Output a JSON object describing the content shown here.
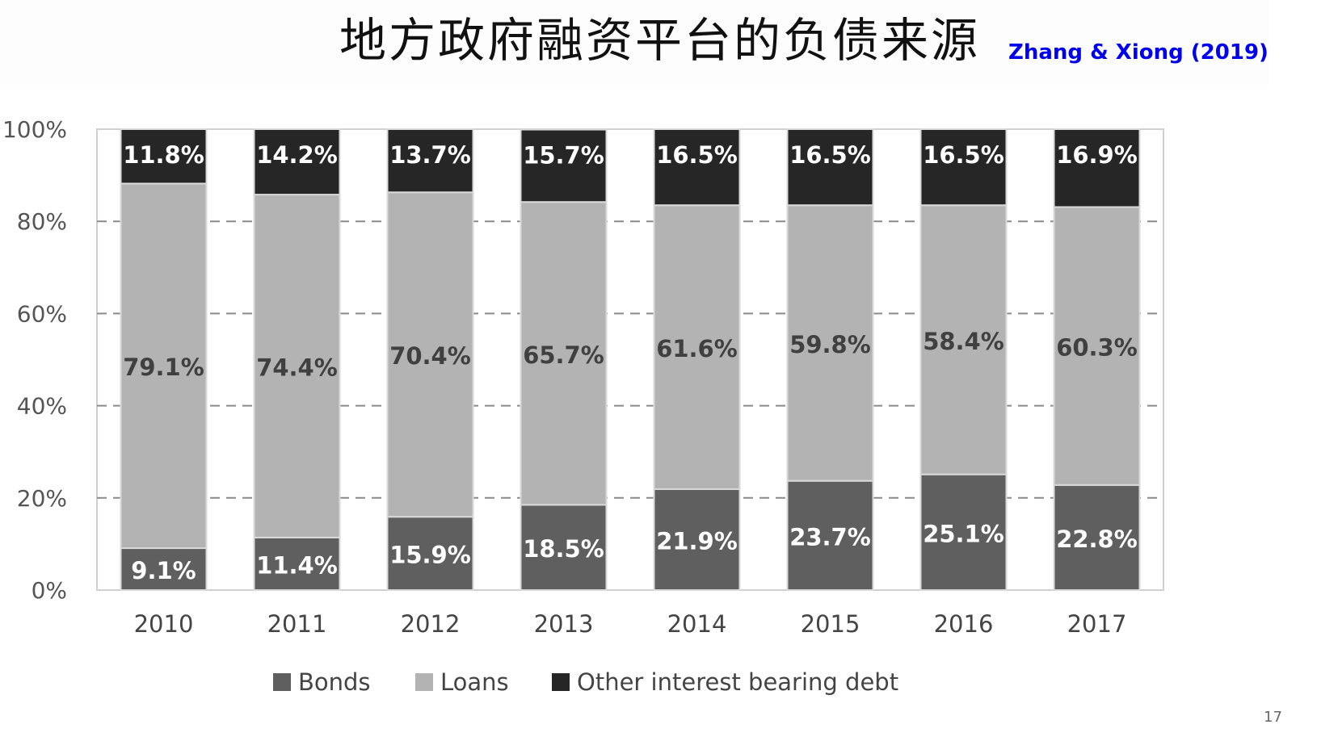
{
  "slide": {
    "title": "地方政府融资平台的负债来源",
    "citation": "Zhang & Xiong (2019)",
    "page_number": "17"
  },
  "chart_data": {
    "type": "bar",
    "stacked": true,
    "title": "",
    "xlabel": "",
    "ylabel": "",
    "ylim": [
      0,
      100
    ],
    "y_ticks": [
      "0%",
      "20%",
      "40%",
      "60%",
      "80%",
      "100%"
    ],
    "grid": true,
    "legend_position": "bottom",
    "categories": [
      "2010",
      "2011",
      "2012",
      "2013",
      "2014",
      "2015",
      "2016",
      "2017"
    ],
    "series": [
      {
        "name": "Bonds",
        "color": "#5f5f5f",
        "values": [
          9.1,
          11.4,
          15.9,
          18.5,
          21.9,
          23.7,
          25.1,
          22.8
        ],
        "labels": [
          "9.1%",
          "11.4%",
          "15.9%",
          "18.5%",
          "21.9%",
          "23.7%",
          "25.1%",
          "22.8%"
        ],
        "label_color": "#ffffff"
      },
      {
        "name": "Loans",
        "color": "#b3b3b3",
        "values": [
          79.1,
          74.4,
          70.4,
          65.7,
          61.6,
          59.8,
          58.4,
          60.3
        ],
        "labels": [
          "79.1%",
          "74.4%",
          "70.4%",
          "65.7%",
          "61.6%",
          "59.8%",
          "58.4%",
          "60.3%"
        ],
        "label_color": "#404040"
      },
      {
        "name": "Other interest bearing debt",
        "color": "#262626",
        "values": [
          11.8,
          14.2,
          13.7,
          15.7,
          16.5,
          16.5,
          16.5,
          16.9
        ],
        "labels": [
          "11.8%",
          "14.2%",
          "13.7%",
          "15.7%",
          "16.5%",
          "16.5%",
          "16.5%",
          "16.9%"
        ],
        "label_color": "#ffffff"
      }
    ]
  }
}
